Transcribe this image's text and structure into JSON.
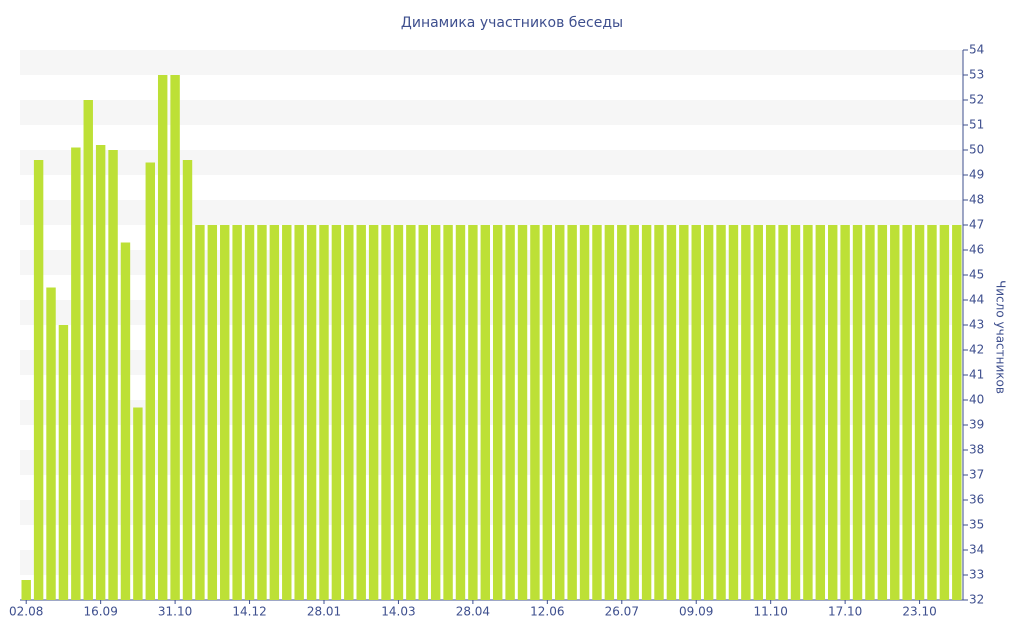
{
  "chart_data": {
    "type": "bar",
    "title": "Динамика участников беседы",
    "y_axis_label": "Число участников",
    "categories": [
      "02.08",
      null,
      null,
      null,
      null,
      null,
      "16.09",
      null,
      null,
      null,
      null,
      null,
      "31.10",
      null,
      null,
      null,
      null,
      null,
      "14.12",
      null,
      null,
      null,
      null,
      null,
      "28.01",
      null,
      null,
      null,
      null,
      null,
      "14.03",
      null,
      null,
      null,
      null,
      null,
      "28.04",
      null,
      null,
      null,
      null,
      null,
      "12.06",
      null,
      null,
      null,
      null,
      null,
      "26.07",
      null,
      null,
      null,
      null,
      null,
      "09.09",
      null,
      null,
      null,
      null,
      null,
      "11.10",
      null,
      null,
      null,
      null,
      null,
      "17.10",
      null,
      null,
      null,
      null,
      null,
      "23.10",
      null,
      null,
      null
    ],
    "values": [
      32.8,
      49.6,
      44.5,
      43,
      50.1,
      52,
      50.2,
      50,
      46.3,
      39.7,
      49.5,
      53,
      53,
      49.6,
      47,
      47,
      47,
      47,
      47,
      47,
      47,
      47,
      47,
      47,
      47,
      47,
      47,
      47,
      47,
      47,
      47,
      47,
      47,
      47,
      47,
      47,
      47,
      47,
      47,
      47,
      47,
      47,
      47,
      47,
      47,
      47,
      47,
      47,
      47,
      47,
      47,
      47,
      47,
      47,
      47,
      47,
      47,
      47,
      47,
      47,
      47,
      47,
      47,
      47,
      47,
      47,
      47,
      47,
      47,
      47,
      47,
      47,
      47,
      47,
      47,
      47
    ],
    "color": "#bde036",
    "ylim": [
      32,
      54
    ],
    "yticks": [
      32,
      33,
      34,
      35,
      36,
      37,
      38,
      39,
      40,
      41,
      42,
      43,
      44,
      45,
      46,
      47,
      48,
      49,
      50,
      51,
      52,
      53,
      54
    ],
    "y_axis_side": "right",
    "grid": true
  }
}
